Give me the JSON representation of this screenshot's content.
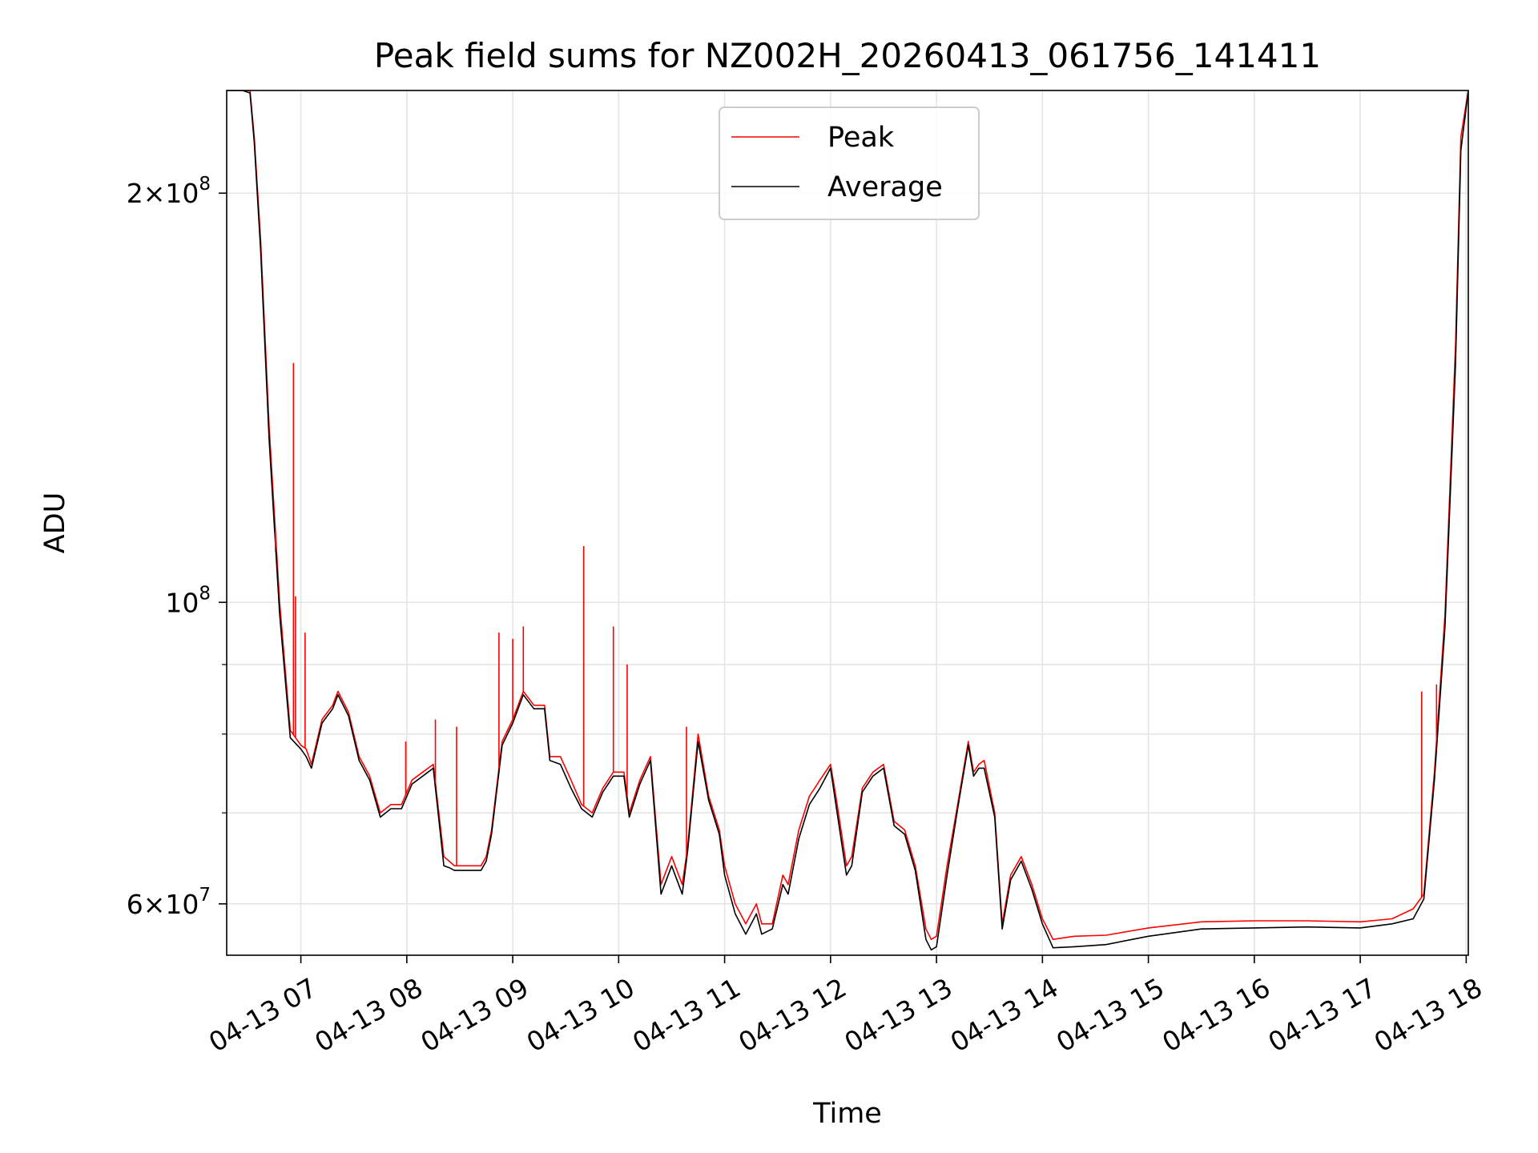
{
  "chart_data": {
    "type": "line",
    "title": "Peak field sums for NZ002H_20260413_061756_141411",
    "xlabel": "Time",
    "ylabel": "ADU",
    "yscale": "log",
    "xlim": [
      6.3,
      18.02
    ],
    "ylim": [
      55000000,
      238000000
    ],
    "grid": true,
    "legend_position": "top-center",
    "x_ticks": [
      {
        "value": 7,
        "label": "04-13 07"
      },
      {
        "value": 8,
        "label": "04-13 08"
      },
      {
        "value": 9,
        "label": "04-13 09"
      },
      {
        "value": 10,
        "label": "04-13 10"
      },
      {
        "value": 11,
        "label": "04-13 11"
      },
      {
        "value": 12,
        "label": "04-13 12"
      },
      {
        "value": 13,
        "label": "04-13 13"
      },
      {
        "value": 14,
        "label": "04-13 14"
      },
      {
        "value": 15,
        "label": "04-13 15"
      },
      {
        "value": 16,
        "label": "04-13 16"
      },
      {
        "value": 17,
        "label": "04-13 17"
      },
      {
        "value": 18,
        "label": "04-13 18"
      }
    ],
    "y_major_ticks": [
      {
        "value": 60000000,
        "mantissa": "6",
        "exponent": "7"
      },
      {
        "value": 100000000,
        "mantissa": "",
        "exponent": "8"
      },
      {
        "value": 200000000,
        "mantissa": "2",
        "exponent": "8"
      }
    ],
    "y_minor_ticks": [
      70000000,
      80000000,
      90000000
    ],
    "series": [
      {
        "name": "Peak",
        "color": "#ff0000",
        "x": [
          6.3,
          6.45,
          6.52,
          6.56,
          6.62,
          6.7,
          6.8,
          6.9,
          7.0,
          7.05,
          7.1,
          7.2,
          7.3,
          7.35,
          7.45,
          7.55,
          7.65,
          7.75,
          7.85,
          7.95,
          8.05,
          8.15,
          8.25,
          8.35,
          8.4,
          8.45,
          8.5,
          8.6,
          8.7,
          8.75,
          8.8,
          8.9,
          9.0,
          9.1,
          9.2,
          9.3,
          9.35,
          9.45,
          9.55,
          9.65,
          9.75,
          9.85,
          9.95,
          10.05,
          10.1,
          10.2,
          10.3,
          10.4,
          10.5,
          10.6,
          10.65,
          10.75,
          10.85,
          10.95,
          11.0,
          11.1,
          11.2,
          11.3,
          11.35,
          11.45,
          11.55,
          11.6,
          11.7,
          11.8,
          11.9,
          12.0,
          12.05,
          12.15,
          12.2,
          12.3,
          12.4,
          12.5,
          12.6,
          12.7,
          12.8,
          12.9,
          12.95,
          13.0,
          13.1,
          13.2,
          13.3,
          13.35,
          13.4,
          13.45,
          13.55,
          13.62,
          13.7,
          13.8,
          13.9,
          14.0,
          14.1,
          14.3,
          14.6,
          15.0,
          15.5,
          16.0,
          16.5,
          17.0,
          17.3,
          17.5,
          17.6,
          17.7,
          17.8,
          17.9,
          17.95,
          18.02
        ],
        "y": [
          238000000,
          238000000,
          238000000,
          220000000,
          185000000,
          135000000,
          100000000,
          80500000,
          78500000,
          78000000,
          76000000,
          82000000,
          84000000,
          86000000,
          83000000,
          77000000,
          74500000,
          70000000,
          71000000,
          71000000,
          74000000,
          75000000,
          76000000,
          65000000,
          64500000,
          64000000,
          64000000,
          64000000,
          64000000,
          65000000,
          68000000,
          79000000,
          82000000,
          86000000,
          84000000,
          84000000,
          77000000,
          77000000,
          74000000,
          71000000,
          70000000,
          73000000,
          75000000,
          75000000,
          70000000,
          74000000,
          77000000,
          62000000,
          65000000,
          62000000,
          66000000,
          80000000,
          72000000,
          68000000,
          64000000,
          60000000,
          58000000,
          60000000,
          58000000,
          58000000,
          63000000,
          62000000,
          68000000,
          72000000,
          74000000,
          76000000,
          72000000,
          64000000,
          65000000,
          73000000,
          75000000,
          76000000,
          69000000,
          68000000,
          64000000,
          57500000,
          56500000,
          56800000,
          64000000,
          71000000,
          79000000,
          75000000,
          76000000,
          76500000,
          70000000,
          58000000,
          63000000,
          65000000,
          62000000,
          58500000,
          56500000,
          56800000,
          56900000,
          57600000,
          58200000,
          58300000,
          58300000,
          58200000,
          58500000,
          59500000,
          61000000,
          75000000,
          98000000,
          155000000,
          220000000,
          238000000
        ]
      },
      {
        "name": "Average",
        "color": "#000000",
        "x": [
          6.3,
          6.45,
          6.52,
          6.56,
          6.62,
          6.7,
          6.8,
          6.9,
          7.0,
          7.05,
          7.1,
          7.2,
          7.3,
          7.35,
          7.45,
          7.55,
          7.65,
          7.75,
          7.85,
          7.95,
          8.05,
          8.15,
          8.25,
          8.35,
          8.4,
          8.45,
          8.5,
          8.6,
          8.7,
          8.75,
          8.8,
          8.9,
          9.0,
          9.1,
          9.2,
          9.3,
          9.35,
          9.45,
          9.55,
          9.65,
          9.75,
          9.85,
          9.95,
          10.05,
          10.1,
          10.2,
          10.3,
          10.4,
          10.5,
          10.6,
          10.65,
          10.75,
          10.85,
          10.95,
          11.0,
          11.1,
          11.2,
          11.3,
          11.35,
          11.45,
          11.55,
          11.6,
          11.7,
          11.8,
          11.9,
          12.0,
          12.05,
          12.15,
          12.2,
          12.3,
          12.4,
          12.5,
          12.6,
          12.7,
          12.8,
          12.9,
          12.95,
          13.0,
          13.1,
          13.2,
          13.3,
          13.35,
          13.4,
          13.45,
          13.55,
          13.62,
          13.7,
          13.8,
          13.9,
          14.0,
          14.1,
          14.3,
          14.6,
          15.0,
          15.5,
          16.0,
          16.5,
          17.0,
          17.3,
          17.5,
          17.6,
          17.7,
          17.8,
          17.9,
          17.95,
          18.02
        ],
        "y": [
          238000000,
          238000000,
          237000000,
          218000000,
          182000000,
          132000000,
          98000000,
          79500000,
          78000000,
          77000000,
          75500000,
          81500000,
          83500000,
          85500000,
          82500000,
          76500000,
          74000000,
          69500000,
          70500000,
          70500000,
          73500000,
          74500000,
          75500000,
          64000000,
          63800000,
          63500000,
          63500000,
          63500000,
          63500000,
          64500000,
          67500000,
          78500000,
          81500000,
          85500000,
          83500000,
          83500000,
          76500000,
          76000000,
          73000000,
          70500000,
          69500000,
          72500000,
          74500000,
          74500000,
          69500000,
          73500000,
          76500000,
          61000000,
          64000000,
          61000000,
          65500000,
          79000000,
          71500000,
          67500000,
          63000000,
          59000000,
          57000000,
          59000000,
          57000000,
          57500000,
          62000000,
          61000000,
          67000000,
          71000000,
          73000000,
          75500000,
          71000000,
          63000000,
          64000000,
          72500000,
          74500000,
          75500000,
          68500000,
          67500000,
          63500000,
          56500000,
          55500000,
          55800000,
          63000000,
          70500000,
          78500000,
          74500000,
          75500000,
          75500000,
          69500000,
          57500000,
          62500000,
          64500000,
          61500000,
          58000000,
          55700000,
          55800000,
          56000000,
          56800000,
          57500000,
          57600000,
          57700000,
          57600000,
          58000000,
          58500000,
          60500000,
          74000000,
          96000000,
          150000000,
          215000000,
          238000000
        ]
      }
    ],
    "spikes": [
      {
        "series": "Peak",
        "x": 6.76,
        "y": 109000000
      },
      {
        "series": "Peak",
        "x": 6.93,
        "y": 150000000
      },
      {
        "series": "Peak",
        "x": 6.95,
        "y": 101000000
      },
      {
        "series": "Peak",
        "x": 7.04,
        "y": 95000000
      },
      {
        "series": "Peak",
        "x": 7.99,
        "y": 79000000
      },
      {
        "series": "Peak",
        "x": 8.27,
        "y": 82000000
      },
      {
        "series": "Peak",
        "x": 8.47,
        "y": 81000000
      },
      {
        "series": "Peak",
        "x": 8.87,
        "y": 95000000
      },
      {
        "series": "Peak",
        "x": 9.0,
        "y": 94000000
      },
      {
        "series": "Peak",
        "x": 9.1,
        "y": 96000000
      },
      {
        "series": "Peak",
        "x": 9.67,
        "y": 110000000
      },
      {
        "series": "Peak",
        "x": 9.95,
        "y": 96000000
      },
      {
        "series": "Peak",
        "x": 10.08,
        "y": 90000000
      },
      {
        "series": "Peak",
        "x": 10.64,
        "y": 81000000
      },
      {
        "series": "Peak",
        "x": 17.58,
        "y": 86000000
      },
      {
        "series": "Peak",
        "x": 17.72,
        "y": 87000000
      }
    ],
    "legend": [
      {
        "label": "Peak",
        "color": "#ff0000"
      },
      {
        "label": "Average",
        "color": "#000000"
      }
    ]
  }
}
